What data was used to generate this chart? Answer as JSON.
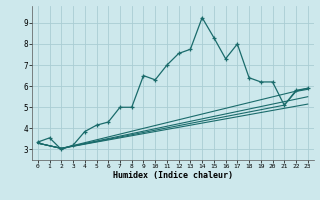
{
  "xlabel": "Humidex (Indice chaleur)",
  "xlim": [
    -0.5,
    23.5
  ],
  "ylim": [
    2.5,
    9.8
  ],
  "yticks": [
    3,
    4,
    5,
    6,
    7,
    8,
    9
  ],
  "xticks": [
    0,
    1,
    2,
    3,
    4,
    5,
    6,
    7,
    8,
    9,
    10,
    11,
    12,
    13,
    14,
    15,
    16,
    17,
    18,
    19,
    20,
    21,
    22,
    23
  ],
  "bg_color": "#cde8ec",
  "grid_color": "#aacdd4",
  "line_color": "#1a6b6b",
  "line1_x": [
    0,
    1,
    2,
    3,
    4,
    5,
    6,
    7,
    8,
    9,
    10,
    11,
    12,
    13,
    14,
    15,
    16,
    17,
    18,
    19,
    20,
    21,
    22,
    23
  ],
  "line1_y": [
    3.35,
    3.55,
    3.0,
    3.2,
    3.85,
    4.15,
    4.3,
    5.0,
    5.0,
    6.5,
    6.3,
    7.0,
    7.55,
    7.75,
    9.25,
    8.3,
    7.3,
    8.0,
    6.4,
    6.2,
    6.2,
    5.1,
    5.8,
    5.9
  ],
  "line2_x": [
    0,
    2,
    23
  ],
  "line2_y": [
    3.3,
    3.05,
    5.9
  ],
  "line3_x": [
    0,
    2,
    23
  ],
  "line3_y": [
    3.3,
    3.05,
    5.5
  ],
  "line4_x": [
    0,
    2,
    23
  ],
  "line4_y": [
    3.3,
    3.05,
    5.15
  ],
  "line5_x": [
    0,
    2,
    21,
    22,
    23
  ],
  "line5_y": [
    3.3,
    3.05,
    5.1,
    5.75,
    5.85
  ]
}
